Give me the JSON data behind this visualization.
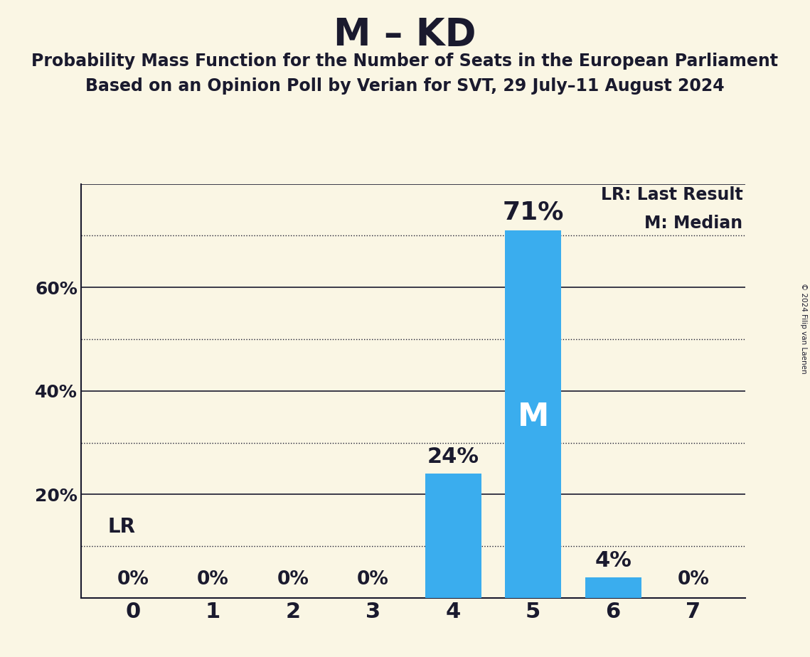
{
  "title": "M – KD",
  "subtitle1": "Probability Mass Function for the Number of Seats in the European Parliament",
  "subtitle2": "Based on an Opinion Poll by Verian for SVT, 29 July–11 August 2024",
  "copyright": "© 2024 Filip van Laenen",
  "categories": [
    0,
    1,
    2,
    3,
    4,
    5,
    6,
    7
  ],
  "values": [
    0,
    0,
    0,
    0,
    24,
    71,
    4,
    0
  ],
  "bar_color": "#3aadee",
  "background_color": "#faf6e4",
  "text_color": "#1a1a2e",
  "ylim": [
    0,
    80
  ],
  "yticks": [
    0,
    10,
    20,
    30,
    40,
    50,
    60,
    70,
    80
  ],
  "ytick_labels": [
    "",
    "",
    "20%",
    "",
    "40%",
    "",
    "60%",
    "",
    ""
  ],
  "solid_gridlines": [
    0,
    20,
    40,
    60,
    80
  ],
  "dotted_gridlines": [
    10,
    30,
    50,
    70
  ],
  "last_result_line": 10,
  "median_seat": 5,
  "annotations": {
    "0": "0%",
    "1": "0%",
    "2": "0%",
    "3": "0%",
    "4": "24%",
    "5": "71%",
    "6": "4%",
    "7": "0%"
  },
  "legend_lr": "LR: Last Result",
  "legend_m": "M: Median",
  "lr_label": "LR",
  "m_label": "M"
}
